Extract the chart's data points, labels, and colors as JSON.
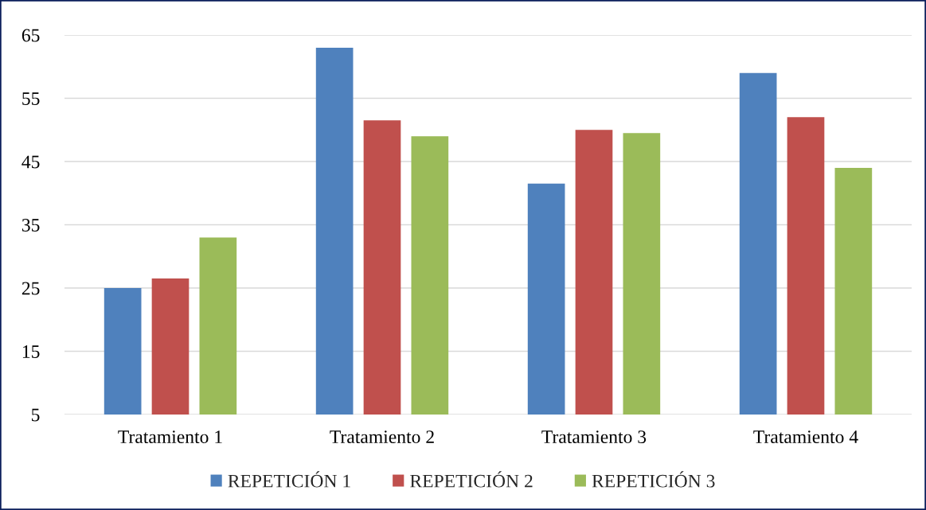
{
  "chart_data": {
    "type": "bar",
    "categories": [
      "Tratamiento 1",
      "Tratamiento 2",
      "Tratamiento 3",
      "Tratamiento 4"
    ],
    "series": [
      {
        "name": "REPETICIÓN 1",
        "color": "#4f81bd",
        "values": [
          25,
          63,
          41.5,
          59
        ]
      },
      {
        "name": "REPETICIÓN 2",
        "color": "#c0504d",
        "values": [
          26.5,
          51.5,
          50,
          52
        ]
      },
      {
        "name": "REPETICIÓN 3",
        "color": "#9bbb59",
        "values": [
          33,
          49,
          49.5,
          44
        ]
      }
    ],
    "ylim": [
      5,
      65
    ],
    "yticks": [
      5,
      15,
      25,
      35,
      45,
      55,
      65
    ],
    "grid": "y",
    "legend": "bottom"
  }
}
